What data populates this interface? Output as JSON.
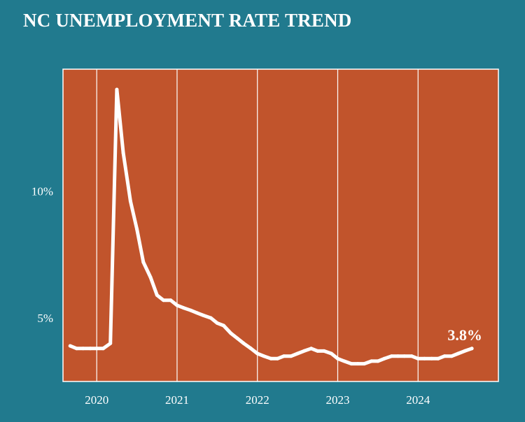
{
  "chart_data": {
    "type": "line",
    "title": "NC UNEMPLOYMENT RATE TREND",
    "xlabel": "",
    "ylabel": "",
    "x_ticks": [
      "2020",
      "2021",
      "2022",
      "2023",
      "2024"
    ],
    "y_ticks": [
      "5%",
      "10%"
    ],
    "y_tick_values": [
      5,
      10
    ],
    "ylim": [
      2.5,
      14.8
    ],
    "xlim": [
      2019.58,
      2025.0
    ],
    "grid": "vertical gridlines at each year",
    "end_label": "3.8%",
    "series": [
      {
        "x": [
          2019.67,
          2019.75,
          2019.83,
          2019.92,
          2020.0,
          2020.08,
          2020.17,
          2020.25,
          2020.33,
          2020.42,
          2020.5,
          2020.58,
          2020.67,
          2020.75,
          2020.83,
          2020.92,
          2021.0,
          2021.08,
          2021.17,
          2021.25,
          2021.33,
          2021.42,
          2021.5,
          2021.58,
          2021.67,
          2021.75,
          2021.83,
          2021.92,
          2022.0,
          2022.08,
          2022.17,
          2022.25,
          2022.33,
          2022.42,
          2022.5,
          2022.58,
          2022.67,
          2022.75,
          2022.83,
          2022.92,
          2023.0,
          2023.08,
          2023.17,
          2023.25,
          2023.33,
          2023.42,
          2023.5,
          2023.58,
          2023.67,
          2023.75,
          2023.83,
          2023.92,
          2024.0,
          2024.08,
          2024.17,
          2024.25,
          2024.33,
          2024.42,
          2024.5,
          2024.58,
          2024.67
        ],
        "values": [
          3.9,
          3.8,
          3.8,
          3.8,
          3.8,
          3.8,
          4.0,
          14.0,
          11.5,
          9.6,
          8.5,
          7.2,
          6.6,
          5.9,
          5.7,
          5.7,
          5.5,
          5.4,
          5.3,
          5.2,
          5.1,
          5.0,
          4.8,
          4.7,
          4.4,
          4.2,
          4.0,
          3.8,
          3.6,
          3.5,
          3.4,
          3.4,
          3.5,
          3.5,
          3.6,
          3.7,
          3.8,
          3.7,
          3.7,
          3.6,
          3.4,
          3.3,
          3.2,
          3.2,
          3.2,
          3.3,
          3.3,
          3.4,
          3.5,
          3.5,
          3.5,
          3.5,
          3.4,
          3.4,
          3.4,
          3.4,
          3.5,
          3.5,
          3.6,
          3.7,
          3.8
        ]
      }
    ],
    "colors": {
      "background": "#217A8E",
      "plot_area": "#C1542C",
      "line": "#FFFFFF",
      "grid": "#FFFFFF",
      "text": "#FFFFFF"
    }
  }
}
